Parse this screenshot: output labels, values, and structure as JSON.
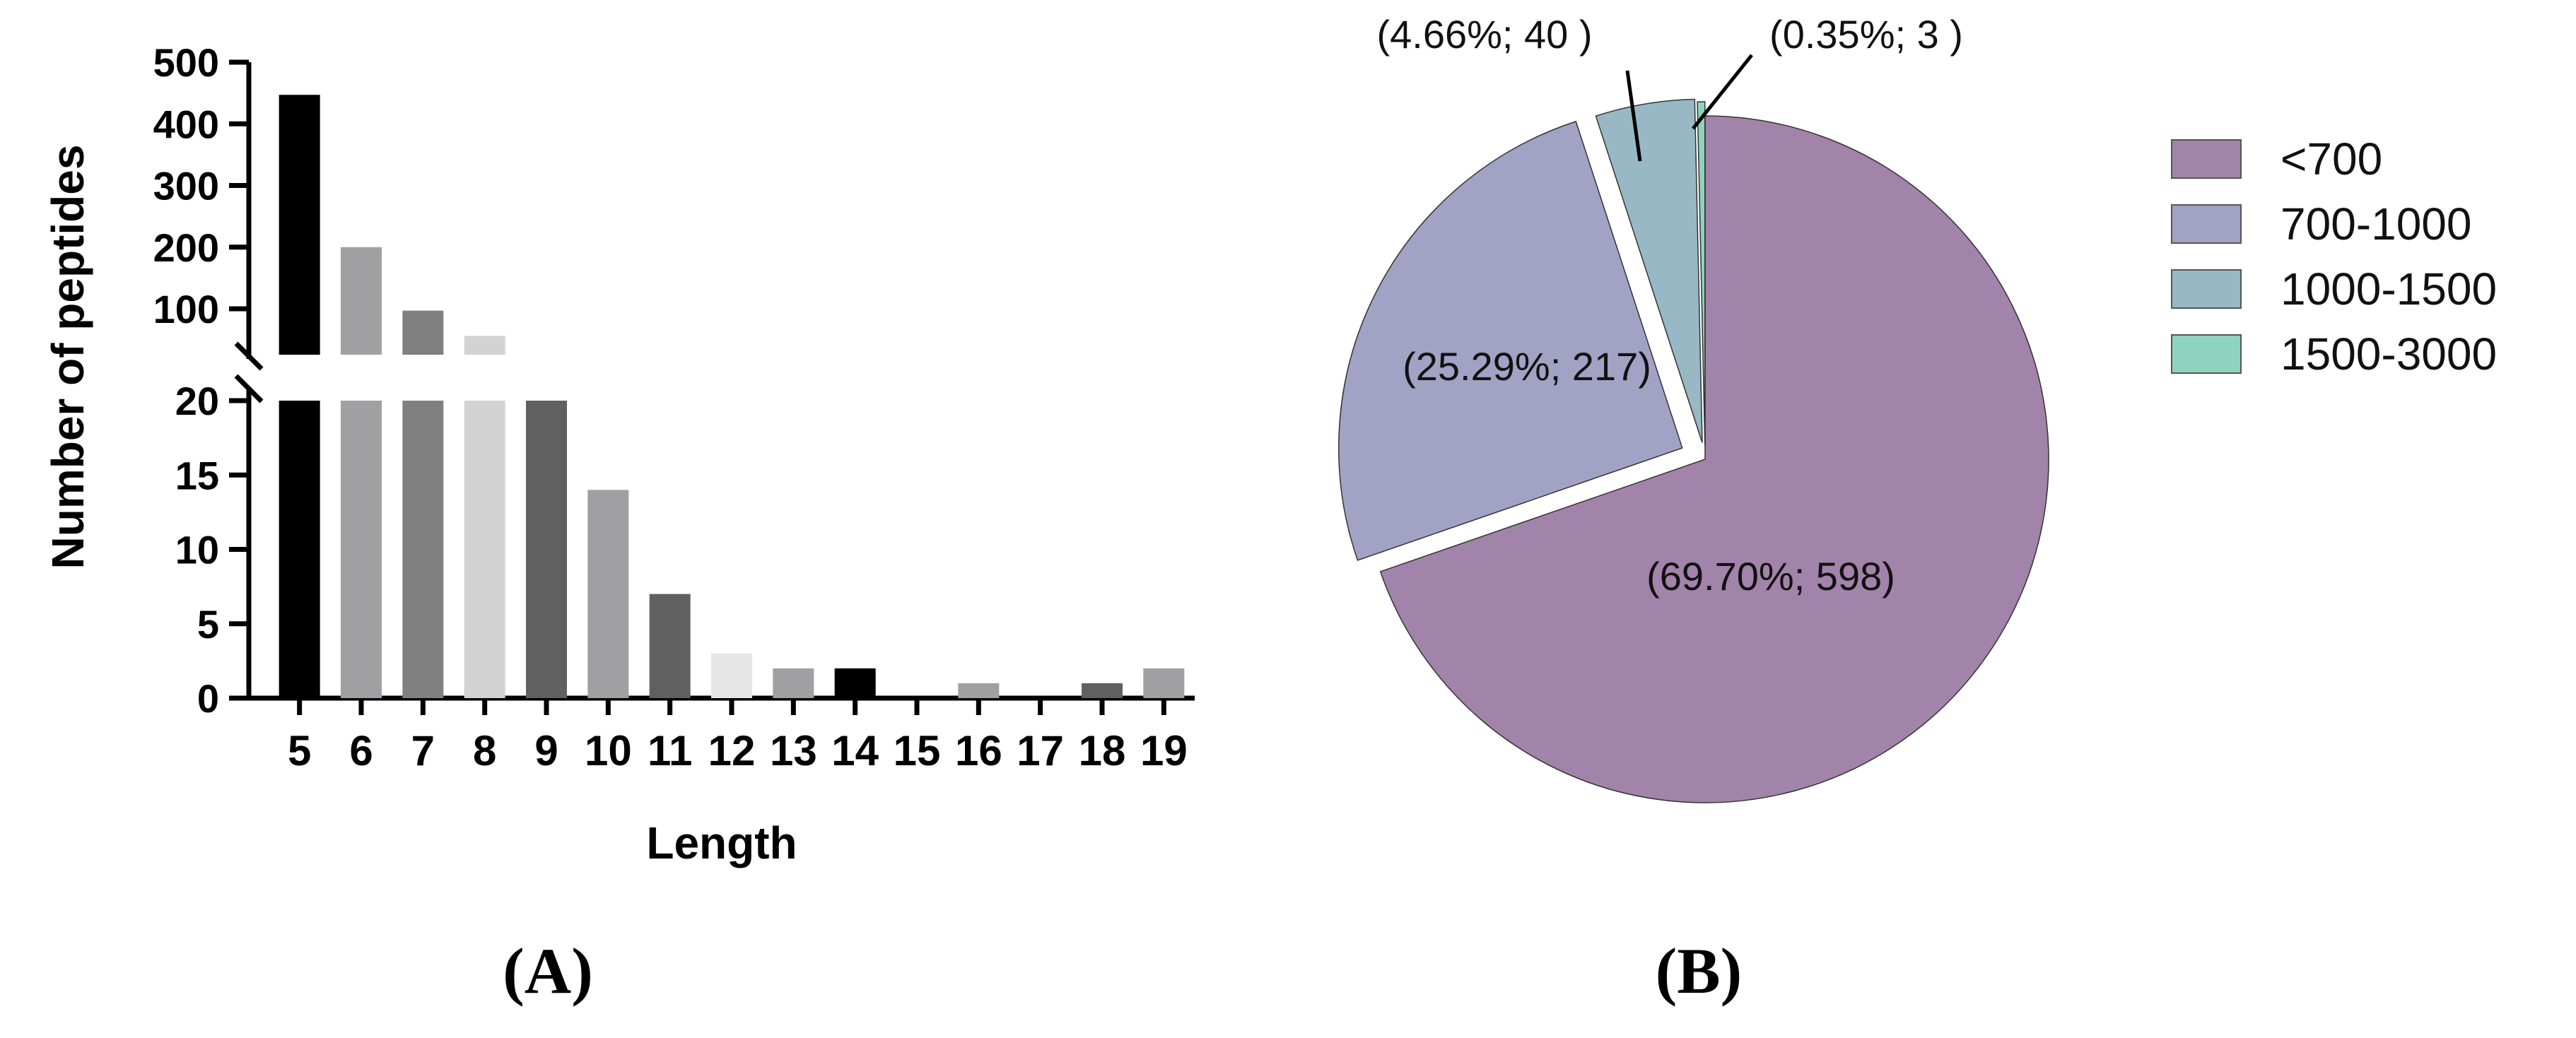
{
  "chart_data": [
    {
      "type": "bar",
      "panel_label": "(A)",
      "xlabel": "Length",
      "ylabel": "Number of peptides",
      "categories": [
        "5",
        "6",
        "7",
        "8",
        "9",
        "10",
        "11",
        "12",
        "13",
        "14",
        "15",
        "16",
        "17",
        "18",
        "19"
      ],
      "values": [
        447,
        200,
        97,
        56,
        20,
        14,
        7,
        3,
        2,
        2,
        0,
        1,
        0,
        1,
        2
      ],
      "bar_colors": [
        "#000000",
        "#a0a0a2",
        "#808080",
        "#d3d3d3",
        "#606060",
        "#a0a0a2",
        "#606060",
        "#e6e6e6",
        "#a0a0a2",
        "#000000",
        "#a0a0a2",
        "#a0a0a2",
        "#808080",
        "#606060",
        "#a0a0a2"
      ],
      "y_axis": "broken",
      "ylim_lower": [
        0,
        20
      ],
      "ylim_upper": [
        20,
        500
      ],
      "yticks_lower": [
        "0",
        "5",
        "10",
        "15",
        "20"
      ],
      "yticks_upper": [
        "100",
        "200",
        "300",
        "400",
        "500"
      ]
    },
    {
      "type": "pie",
      "panel_label": "(B)",
      "labels": [
        "<700",
        "700-1000",
        "1000-1500",
        "1500-3000"
      ],
      "values": [
        598,
        217,
        40,
        3
      ],
      "percents": [
        69.7,
        25.29,
        4.66,
        0.35
      ],
      "slice_labels": [
        "(69.70%; 598)",
        "(25.29%; 217)",
        "(4.66%; 40 )",
        "(0.35%; 3 )"
      ],
      "colors": [
        "#a283aa",
        "#a2a2c4",
        "#97b8c4",
        "#8fd3be"
      ],
      "legend": "right",
      "exploded": true
    }
  ]
}
